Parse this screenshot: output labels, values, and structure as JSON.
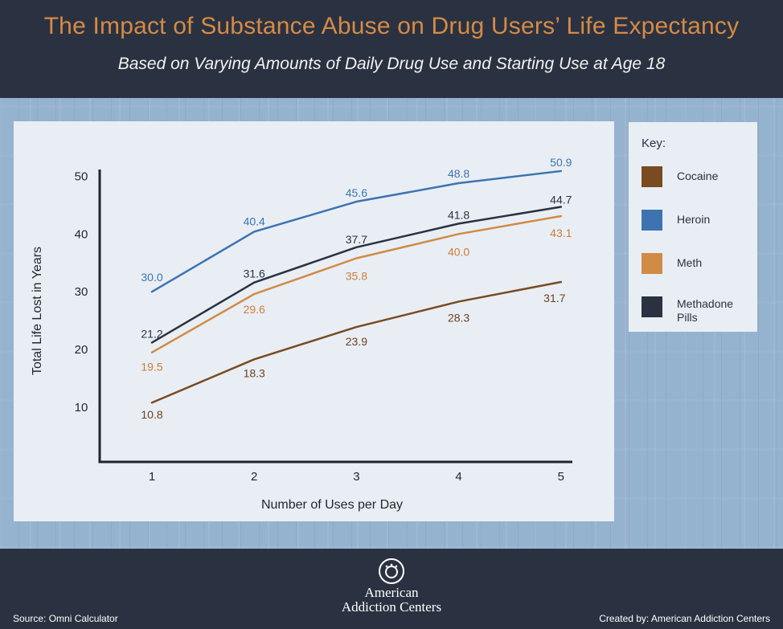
{
  "header": {
    "title": "The Impact of Substance Abuse on Drug Users’ Life Expectancy",
    "subtitle": "Based on Varying Amounts of Daily Drug Use and Starting Use at Age 18"
  },
  "colors": {
    "background": "#2a3241",
    "title": "#d68a45",
    "panel": "#e9eef4",
    "axis": "#1f2430"
  },
  "chart_data": {
    "type": "line",
    "title": "The Impact of Substance Abuse on Drug Users’ Life Expectancy",
    "subtitle": "Based on Varying Amounts of Daily Drug Use and Starting Use at Age 18",
    "xlabel": "Number of Uses per Day",
    "ylabel": "Total Life Lost in Years",
    "categories": [
      "1",
      "2",
      "3",
      "4",
      "5"
    ],
    "yticks": [
      10,
      20,
      30,
      40,
      50
    ],
    "ylim": [
      0,
      50
    ],
    "grid": false,
    "series": [
      {
        "name": "Cocaine",
        "color": "#7a4a21",
        "label_color": "#6b4220",
        "values": [
          10.8,
          18.3,
          23.9,
          28.3,
          31.7
        ],
        "labels": [
          "10.8",
          "18.3",
          "23.9",
          "28.3",
          "31.7"
        ]
      },
      {
        "name": "Heroin",
        "color": "#3d74b0",
        "label_color": "#3d74b0",
        "values": [
          30.0,
          40.4,
          45.6,
          48.8,
          50.9
        ],
        "labels": [
          "30.0",
          "40.4",
          "45.6",
          "48.8",
          "50.9"
        ]
      },
      {
        "name": "Meth",
        "color": "#d08b45",
        "label_color": "#c97f36",
        "values": [
          19.5,
          29.6,
          35.8,
          40.0,
          43.1
        ],
        "labels": [
          "19.5",
          "29.6",
          "35.8",
          "40.0",
          "43.1"
        ]
      },
      {
        "name": "Methadone Pills",
        "color": "#2a3241",
        "label_color": "#2a3241",
        "values": [
          21.2,
          31.6,
          37.7,
          41.8,
          44.7
        ],
        "labels": [
          "21.2",
          "31.6",
          "37.7",
          "41.8",
          "44.7"
        ]
      }
    ]
  },
  "key": {
    "title": "Key:",
    "items": [
      {
        "label": "Cocaine",
        "color": "#7a4a21"
      },
      {
        "label": "Heroin",
        "color": "#3d74b0"
      },
      {
        "label": "Meth",
        "color": "#d08b45"
      },
      {
        "label": "Methadone Pills",
        "color": "#2a3241"
      }
    ]
  },
  "footer": {
    "logo_line1": "American",
    "logo_line2": "Addiction Centers",
    "source": "Source: Omni Calculator",
    "credit": "Created by: American Addiction Centers"
  }
}
